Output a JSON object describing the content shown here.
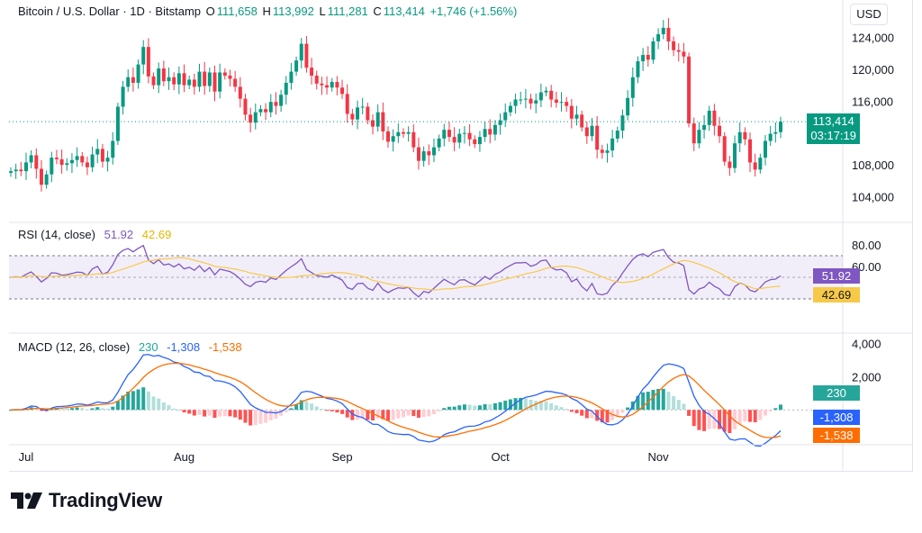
{
  "header": {
    "symbol": "Bitcoin / U.S. Dollar · 1D · Bitstamp",
    "o_label": "O",
    "o": "111,658",
    "h_label": "H",
    "h": "113,992",
    "l_label": "L",
    "l": "111,281",
    "c_label": "C",
    "c": "113,414",
    "change": "+1,746 (+1.56%)"
  },
  "currency": "USD",
  "price_tag": {
    "price": "113,414",
    "countdown": "03:17:19"
  },
  "rsi": {
    "title": "RSI (14, close)",
    "value": "51.92",
    "ma_value": "42.69"
  },
  "macd": {
    "title": "MACD (12, 26, close)",
    "hist": "230",
    "macd": "-1,308",
    "signal": "-1,538"
  },
  "brand": {
    "name": "TradingView"
  },
  "colors": {
    "up": "#089981",
    "down": "#f23645",
    "rsi_line": "#7e57c2",
    "rsi_ma": "#f7c948",
    "macd_line": "#2962ff",
    "signal_line": "#ff6d00"
  },
  "chart_data": {
    "type": "candlestick",
    "x_ticks": [
      "Jul",
      "Aug",
      "Sep",
      "Oct",
      "Nov"
    ],
    "price_axis": {
      "ticks": [
        "124,000",
        "120,000",
        "116,000",
        "108,000",
        "104,000"
      ],
      "tick_values": [
        124000,
        120000,
        116000,
        108000,
        104000
      ],
      "range": [
        101000,
        127000
      ]
    },
    "closes": [
      107200,
      107400,
      107200,
      108300,
      109200,
      107500,
      105500,
      106800,
      108900,
      108700,
      108000,
      108200,
      108600,
      109100,
      108300,
      107700,
      109300,
      110000,
      108400,
      108900,
      111000,
      115300,
      117800,
      119000,
      118300,
      120600,
      122800,
      119100,
      118000,
      120100,
      118500,
      119000,
      118100,
      119500,
      118000,
      118700,
      117800,
      119700,
      117900,
      119600,
      117200,
      119600,
      119200,
      118800,
      117800,
      116300,
      114300,
      113300,
      114600,
      115000,
      114600,
      115900,
      115400,
      116800,
      118300,
      119700,
      121100,
      123200,
      120200,
      119200,
      118200,
      118000,
      117700,
      118400,
      117700,
      116900,
      114400,
      113700,
      115200,
      115300,
      113600,
      112800,
      114600,
      112200,
      110900,
      111600,
      112100,
      111900,
      112100,
      110200,
      108500,
      109700,
      109200,
      110200,
      111300,
      112400,
      111500,
      110800,
      111900,
      112000,
      111200,
      110600,
      111500,
      112500,
      111800,
      113000,
      113600,
      114600,
      115400,
      116200,
      116200,
      116300,
      115700,
      116100,
      117100,
      117300,
      116200,
      115800,
      115900,
      115400,
      113800,
      114300,
      112700,
      111600,
      112900,
      109900,
      109500,
      109800,
      111300,
      112300,
      114200,
      116400,
      119000,
      121000,
      121800,
      121200,
      123500,
      124400,
      125200,
      123500,
      122400,
      122200,
      121600,
      113200,
      110700,
      112400,
      113000,
      114800,
      112900,
      111600,
      108400,
      107600,
      110700,
      112100,
      111200,
      108300,
      107400,
      108900,
      111000,
      111900,
      112100,
      113414
    ],
    "rsi": {
      "axis_ticks": [
        "80.00",
        "60.00"
      ],
      "range": [
        0,
        100
      ],
      "upper_band": 70,
      "lower_band": 30,
      "mid": 50
    },
    "macd_axis": {
      "ticks": [
        "4,000",
        "2,000"
      ]
    }
  }
}
